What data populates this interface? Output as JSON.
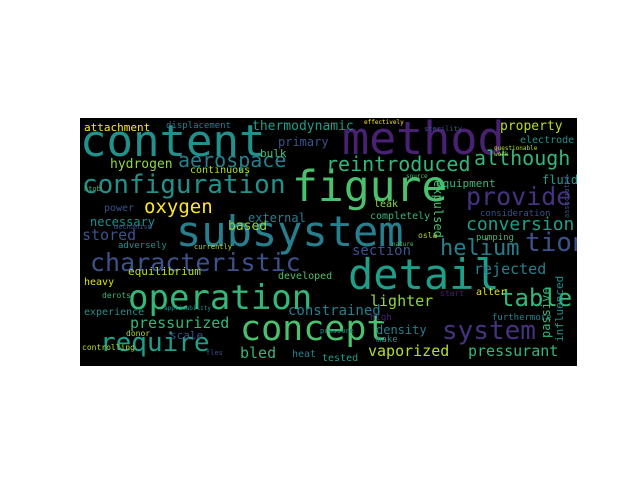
{
  "words": {
    "method": "method",
    "content": "content",
    "figure": "figure",
    "subsystem": "subsystem",
    "detail": "detail",
    "operation": "operation",
    "concept": "concept",
    "configuration": "configuration",
    "characteristic": "characteristic",
    "require": "require",
    "system": "system",
    "table": "table",
    "provide": "provide",
    "reintroduced": "reintroduced",
    "aerospace": "aerospace",
    "although": "although",
    "helium": "helium",
    "tion": "tion",
    "conversion": "conversion",
    "oxygen": "oxygen",
    "hydrogen": "hydrogen",
    "thermodynamic": "thermodynamic",
    "property": "property",
    "attachment": "attachment",
    "displacement": "displacement",
    "stored": "stored",
    "pressurized": "pressurized",
    "bled": "bled",
    "vaporized": "vaporized",
    "pressurant": "pressurant",
    "lighter": "lighter",
    "rejected": "rejected",
    "section": "section",
    "constrained": "constrained",
    "equilibrium": "equilibrium",
    "based": "based",
    "external": "external",
    "necessary": "necessary",
    "continuous": "continuous",
    "primary": "primary",
    "bulk": "bulk",
    "equipment": "equipment",
    "fluid": "fluid",
    "consideration": "consideration",
    "expulsed": "expulsed",
    "completely": "completely",
    "leak": "leak",
    "density": "density",
    "heavy": "heavy",
    "developed": "developed",
    "experience": "experience",
    "scale": "scale",
    "heat": "heat",
    "tested": "tested",
    "alter": "alter",
    "furthermore": "furthermore",
    "passive": "passive",
    "influenced": "influenced",
    "pumping": "pumping",
    "electrode": "electrode",
    "power": "power",
    "adversely": "adversely",
    "make": "make",
    "high": "high",
    "donor": "donor",
    "controlling": "controlling",
    "mechanism": "mechanism",
    "currently": "currently",
    "osla": "osla",
    "start": "start",
    "effectively": "effectively",
    "questionable": "questionable",
    "source": "source",
    "pressure": "pressure",
    "work": "work",
    "htob": "htob",
    "derots": "derots",
    "nature": "nature",
    "applicability": "applicability",
    "fles": "fles",
    "sterility": "sterility",
    "associated": "associated"
  },
  "colors": {
    "background": "#000000",
    "purple": "#46327e",
    "deep_purple": "#482173",
    "blue": "#365c8d",
    "slate": "#3b528b",
    "teal": "#21918c",
    "teal2": "#1f9e89",
    "teal3": "#277f8e",
    "green": "#35b779",
    "green2": "#4ac16d",
    "lime": "#90d743",
    "lime2": "#b5de2b",
    "yellow": "#fde725",
    "yellow2": "#dde318"
  }
}
